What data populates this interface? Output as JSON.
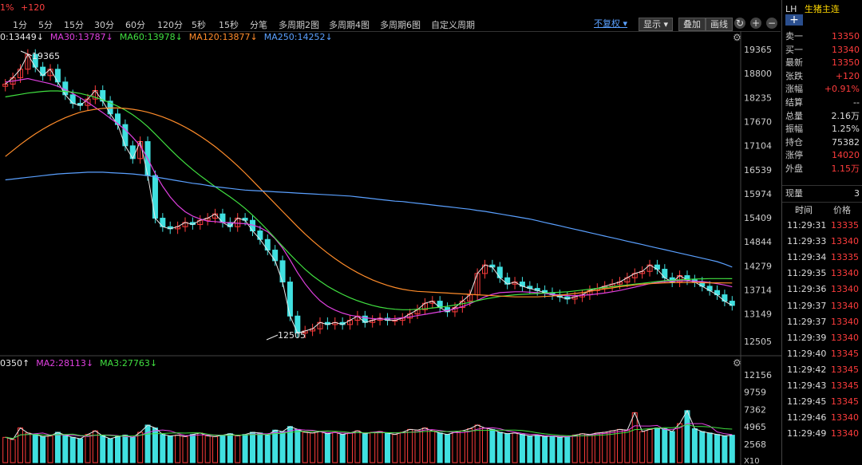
{
  "topbar": {
    "pct": "1%",
    "change": "+120"
  },
  "periods": [
    "1分",
    "5分",
    "15分",
    "30分",
    "60分",
    "120分",
    "5秒",
    "15秒",
    "分笔",
    "多周期2图",
    "多周期4图",
    "多周期6图",
    "自定义周期"
  ],
  "controls": {
    "fuquan": "不复权",
    "display": "显示",
    "overlay": "叠加",
    "draw": "画线"
  },
  "ma_legend": [
    {
      "label": "0:13449↓",
      "color": "#e8e8e8"
    },
    {
      "label": "MA30:13787↓",
      "color": "#e040e0"
    },
    {
      "label": "MA60:13978↓",
      "color": "#40e040"
    },
    {
      "label": "MA120:13877↓",
      "color": "#ff8c2a"
    },
    {
      "label": "MA250:14252↓",
      "color": "#5aa0ff"
    }
  ],
  "vol_legend": [
    {
      "label": "0350↑",
      "color": "#e8e8e8"
    },
    {
      "label": "MA2:28113↓",
      "color": "#e040e0"
    },
    {
      "label": "MA3:27763↓",
      "color": "#40e040"
    }
  ],
  "chart_data": [
    {
      "type": "candlestick",
      "y_ticks": [
        "19365",
        "18800",
        "18235",
        "17670",
        "17104",
        "16539",
        "15974",
        "15409",
        "14844",
        "14279",
        "13714",
        "13149",
        "12505"
      ],
      "ylim": [
        12505,
        19365
      ],
      "annotations": {
        "high": "19365",
        "low": "12505"
      },
      "close": [
        18550,
        18700,
        18900,
        19250,
        18950,
        18750,
        18900,
        18600,
        18300,
        18100,
        18050,
        18200,
        18400,
        18150,
        17850,
        17600,
        17100,
        16800,
        17200,
        16400,
        15400,
        15200,
        15150,
        15200,
        15300,
        15250,
        15350,
        15400,
        15500,
        15300,
        15200,
        15400,
        15350,
        15100,
        14900,
        14650,
        14400,
        13900,
        13100,
        12700,
        12750,
        12800,
        12950,
        12900,
        12950,
        12900,
        13000,
        13100,
        12950,
        13000,
        13050,
        13000,
        13000,
        13050,
        13150,
        13250,
        13400,
        13450,
        13300,
        13200,
        13300,
        13450,
        13600,
        14100,
        14300,
        14250,
        14000,
        13850,
        13900,
        13800,
        13750,
        13700,
        13650,
        13600,
        13550,
        13500,
        13550,
        13600,
        13700,
        13750,
        13800,
        13850,
        13900,
        14000,
        14100,
        14150,
        14300,
        14200,
        14000,
        13900,
        14050,
        13950,
        13900,
        13800,
        13700,
        13600,
        13450,
        13350
      ],
      "ma": [
        {
          "name": "MA30",
          "color": "#e040e0",
          "values": [
            18600,
            18620,
            18650,
            18680,
            18640,
            18600,
            18560,
            18500,
            18420,
            18330,
            18230,
            18120,
            18000,
            17880,
            17750,
            17620,
            17480,
            17300,
            17100,
            16800,
            16450,
            16150,
            15900,
            15700,
            15550,
            15450,
            15380,
            15330,
            15320,
            15300,
            15290,
            15280,
            15270,
            15240,
            15180,
            15080,
            14920,
            14700,
            14420,
            14120,
            13860,
            13640,
            13460,
            13330,
            13240,
            13170,
            13120,
            13090,
            13060,
            13040,
            13030,
            13030,
            13040,
            13060,
            13080,
            13110,
            13140,
            13170,
            13200,
            13230,
            13270,
            13320,
            13390,
            13470,
            13550,
            13610,
            13650,
            13660,
            13670,
            13670,
            13660,
            13650,
            13630,
            13610,
            13590,
            13580,
            13580,
            13590,
            13600,
            13620,
            13640,
            13670,
            13700,
            13740,
            13780,
            13820,
            13860,
            13890,
            13910,
            13920,
            13930,
            13930,
            13920,
            13910,
            13890,
            13860,
            13830,
            13787
          ]
        },
        {
          "name": "MA60",
          "color": "#40e040",
          "values": [
            18250,
            18280,
            18310,
            18340,
            18360,
            18380,
            18390,
            18390,
            18380,
            18360,
            18330,
            18290,
            18240,
            18180,
            18110,
            18030,
            17940,
            17830,
            17700,
            17550,
            17380,
            17200,
            17020,
            16850,
            16690,
            16540,
            16400,
            16270,
            16140,
            16020,
            15900,
            15770,
            15630,
            15470,
            15300,
            15120,
            14930,
            14740,
            14550,
            14370,
            14200,
            14050,
            13920,
            13800,
            13700,
            13610,
            13530,
            13460,
            13400,
            13350,
            13310,
            13280,
            13260,
            13250,
            13250,
            13260,
            13270,
            13290,
            13310,
            13330,
            13360,
            13390,
            13420,
            13460,
            13500,
            13530,
            13560,
            13580,
            13600,
            13610,
            13620,
            13630,
            13640,
            13650,
            13660,
            13670,
            13690,
            13710,
            13730,
            13750,
            13770,
            13790,
            13810,
            13830,
            13850,
            13870,
            13890,
            13910,
            13930,
            13940,
            13950,
            13960,
            13970,
            13975,
            13980,
            13980,
            13980,
            13978
          ]
        },
        {
          "name": "MA120",
          "color": "#ff8c2a",
          "values": [
            16850,
            16990,
            17130,
            17260,
            17380,
            17490,
            17590,
            17680,
            17760,
            17830,
            17890,
            17930,
            17960,
            17980,
            17990,
            17990,
            17980,
            17960,
            17930,
            17890,
            17840,
            17780,
            17710,
            17630,
            17540,
            17440,
            17330,
            17210,
            17080,
            16940,
            16790,
            16630,
            16460,
            16280,
            16100,
            15920,
            15740,
            15560,
            15380,
            15200,
            15030,
            14870,
            14720,
            14580,
            14450,
            14330,
            14220,
            14120,
            14030,
            13950,
            13880,
            13820,
            13770,
            13730,
            13700,
            13680,
            13670,
            13660,
            13650,
            13640,
            13630,
            13620,
            13610,
            13600,
            13590,
            13580,
            13570,
            13560,
            13550,
            13550,
            13550,
            13550,
            13560,
            13570,
            13590,
            13610,
            13630,
            13650,
            13680,
            13710,
            13740,
            13760,
            13790,
            13810,
            13830,
            13850,
            13860,
            13870,
            13880,
            13885,
            13890,
            13890,
            13890,
            13885,
            13880,
            13880,
            13878,
            13877
          ]
        },
        {
          "name": "MA250",
          "color": "#5aa0ff",
          "values": [
            16300,
            16320,
            16340,
            16360,
            16380,
            16400,
            16420,
            16440,
            16450,
            16460,
            16470,
            16480,
            16480,
            16480,
            16470,
            16460,
            16450,
            16440,
            16420,
            16400,
            16370,
            16340,
            16310,
            16280,
            16250,
            16220,
            16200,
            16170,
            16140,
            16120,
            16100,
            16080,
            16060,
            16050,
            16040,
            16030,
            16020,
            16010,
            16000,
            15990,
            15980,
            15970,
            15960,
            15950,
            15940,
            15930,
            15920,
            15900,
            15880,
            15860,
            15840,
            15820,
            15800,
            15790,
            15770,
            15750,
            15730,
            15710,
            15690,
            15670,
            15650,
            15630,
            15610,
            15580,
            15560,
            15530,
            15500,
            15470,
            15440,
            15410,
            15380,
            15340,
            15300,
            15260,
            15220,
            15180,
            15140,
            15100,
            15060,
            15020,
            14980,
            14940,
            14900,
            14860,
            14820,
            14780,
            14740,
            14700,
            14660,
            14620,
            14580,
            14540,
            14500,
            14460,
            14420,
            14380,
            14320,
            14252
          ]
        }
      ]
    },
    {
      "type": "bar",
      "y_ticks": [
        "12156",
        "9759",
        "7362",
        "4965",
        "2568"
      ],
      "ylim": [
        0,
        12156
      ],
      "values": [
        3500,
        3200,
        4800,
        4100,
        3900,
        3600,
        3700,
        4200,
        3800,
        3500,
        3300,
        3900,
        4400,
        3700,
        3300,
        3600,
        3800,
        3500,
        4200,
        5200,
        4800,
        3900,
        3700,
        3800,
        3600,
        3900,
        4100,
        3700,
        3600,
        3800,
        4000,
        3700,
        3900,
        4200,
        4100,
        3800,
        4500,
        4300,
        5000,
        4600,
        4200,
        4100,
        4300,
        4000,
        4200,
        3900,
        4100,
        4400,
        4000,
        4200,
        4300,
        4100,
        3900,
        4200,
        4600,
        4500,
        4800,
        4400,
        4100,
        3900,
        4200,
        4400,
        4700,
        5200,
        4800,
        4600,
        4200,
        4000,
        4100,
        3900,
        3700,
        3800,
        3600,
        3700,
        3500,
        3600,
        3800,
        4000,
        3900,
        4100,
        4200,
        4400,
        4600,
        4500,
        6900,
        4300,
        4600,
        4800,
        4700,
        4300,
        5400,
        7200,
        4700,
        4300,
        4100,
        3900,
        3700,
        3800
      ]
    }
  ],
  "right_panel": {
    "symbol": "LH",
    "name": "生猪主连",
    "rows": [
      {
        "k": "卖一",
        "v": "13350",
        "c": "red"
      },
      {
        "k": "买一",
        "v": "13340",
        "c": "red"
      },
      {
        "k": "最新",
        "v": "13350",
        "c": "red"
      },
      {
        "k": "张跌",
        "v": "+120",
        "c": "red"
      },
      {
        "k": "涨幅",
        "v": "+0.91%",
        "c": "red"
      },
      {
        "k": "结算",
        "v": "--",
        "c": "white"
      },
      {
        "k": "总量",
        "v": "2.16万",
        "c": "white"
      },
      {
        "k": "振幅",
        "v": "1.25%",
        "c": "white"
      },
      {
        "k": "持仓",
        "v": "75382",
        "c": "white"
      },
      {
        "k": "涨停",
        "v": "14020",
        "c": "red"
      },
      {
        "k": "外盘",
        "v": "1.15万",
        "c": "red"
      }
    ],
    "xianliang": {
      "k": "现量",
      "v": "3"
    },
    "trade_headers": {
      "time": "时间",
      "price": "价格"
    },
    "trades": [
      {
        "t": "11:29:31",
        "p": "13335"
      },
      {
        "t": "11:29:33",
        "p": "13340"
      },
      {
        "t": "11:29:34",
        "p": "13335"
      },
      {
        "t": "11:29:35",
        "p": "13340"
      },
      {
        "t": "11:29:36",
        "p": "13340"
      },
      {
        "t": "11:29:37",
        "p": "13340"
      },
      {
        "t": "11:29:37",
        "p": "13340"
      },
      {
        "t": "11:29:39",
        "p": "13340"
      },
      {
        "t": "11:29:40",
        "p": "13345"
      },
      {
        "t": "11:29:42",
        "p": "13345"
      },
      {
        "t": "11:29:43",
        "p": "13345"
      },
      {
        "t": "11:29:45",
        "p": "13345"
      },
      {
        "t": "11:29:46",
        "p": "13340"
      },
      {
        "t": "11:29:49",
        "p": "13340"
      }
    ]
  },
  "x_indicator": "X10"
}
